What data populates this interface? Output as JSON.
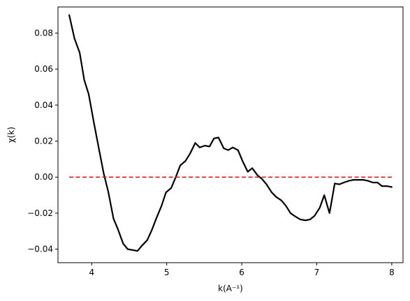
{
  "chart_data": {
    "type": "line",
    "xlabel": "k(A⁻¹)",
    "ylabel": "χ(k)",
    "xlim": [
      3.55,
      8.15
    ],
    "ylim": [
      -0.0475,
      0.0945
    ],
    "xticks": [
      4,
      5,
      6,
      7,
      8
    ],
    "yticks": [
      -0.04,
      -0.02,
      0.0,
      0.02,
      0.04,
      0.06,
      0.08
    ],
    "ytick_labels": [
      "−0.04",
      "−0.02",
      "0.00",
      "0.02",
      "0.04",
      "0.06",
      "0.08"
    ],
    "grid": false,
    "series": [
      {
        "color": "#000000",
        "style": "solid",
        "x": [
          3.7,
          3.77,
          3.84,
          3.9,
          3.96,
          4.03,
          4.09,
          4.16,
          4.22,
          4.29,
          4.35,
          4.42,
          4.48,
          4.55,
          4.61,
          4.67,
          4.74,
          4.8,
          4.86,
          4.93,
          4.99,
          5.06,
          5.12,
          5.18,
          5.25,
          5.31,
          5.38,
          5.44,
          5.51,
          5.57,
          5.63,
          5.69,
          5.76,
          5.82,
          5.88,
          5.95,
          6.01,
          6.08,
          6.14,
          6.21,
          6.27,
          6.33,
          6.4,
          6.46,
          6.53,
          6.59,
          6.65,
          6.72,
          6.78,
          6.85,
          6.91,
          6.97,
          7.04,
          7.1,
          7.17,
          7.24,
          7.3,
          7.36,
          7.43,
          7.49,
          7.56,
          7.62,
          7.68,
          7.75,
          7.81,
          7.87,
          7.94,
          8.0
        ],
        "y": [
          0.09,
          0.077,
          0.069,
          0.054,
          0.046,
          0.03,
          0.017,
          0.002,
          -0.008,
          -0.023,
          -0.029,
          -0.037,
          -0.04,
          -0.0405,
          -0.041,
          -0.038,
          -0.035,
          -0.0295,
          -0.023,
          -0.016,
          -0.0085,
          -0.006,
          0.0,
          0.0065,
          0.009,
          0.013,
          0.019,
          0.0165,
          0.0175,
          0.017,
          0.0215,
          0.022,
          0.016,
          0.015,
          0.0165,
          0.015,
          0.009,
          0.003,
          0.005,
          0.001,
          -0.001,
          -0.004,
          -0.0085,
          -0.011,
          -0.013,
          -0.016,
          -0.02,
          -0.022,
          -0.0235,
          -0.024,
          -0.0235,
          -0.0215,
          -0.017,
          -0.01,
          -0.02,
          -0.0035,
          -0.004,
          -0.003,
          -0.002,
          -0.0015,
          -0.0015,
          -0.0015,
          -0.002,
          -0.003,
          -0.003,
          -0.005,
          -0.005,
          -0.0055
        ]
      },
      {
        "color": "#ff0000",
        "style": "dashed",
        "x": [
          3.7,
          8.0
        ],
        "y": [
          0.0,
          0.0
        ]
      }
    ]
  }
}
